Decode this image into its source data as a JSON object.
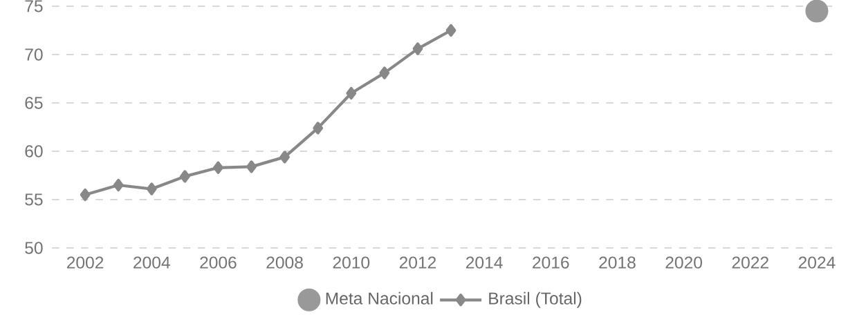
{
  "chart_data": {
    "type": "line",
    "xlim": [
      2001,
      2024.5
    ],
    "ylim": [
      50,
      75
    ],
    "xticks": [
      2002,
      2004,
      2006,
      2008,
      2010,
      2012,
      2014,
      2016,
      2018,
      2020,
      2022,
      2024
    ],
    "yticks": [
      50,
      55,
      60,
      65,
      70,
      75
    ],
    "grid": "y",
    "legend": "bottom",
    "series": [
      {
        "name": "Meta Nacional",
        "type": "scatter",
        "marker": "circle",
        "color": "#999999",
        "x": [
          2024
        ],
        "values": [
          74.5
        ]
      },
      {
        "name": "Brasil (Total)",
        "marker": "diamond",
        "color": "#888888",
        "x": [
          2002,
          2003,
          2004,
          2005,
          2006,
          2007,
          2008,
          2009,
          2010,
          2011,
          2012,
          2013
        ],
        "values": [
          55.5,
          56.5,
          56.1,
          57.4,
          58.3,
          58.4,
          59.4,
          62.4,
          66.0,
          68.1,
          70.6,
          72.5
        ]
      }
    ]
  }
}
